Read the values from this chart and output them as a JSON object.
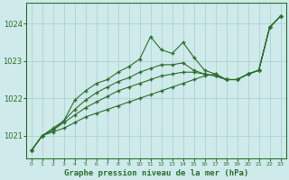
{
  "xlabel": "Graphe pression niveau de la mer (hPa)",
  "x": [
    0,
    1,
    2,
    3,
    4,
    5,
    6,
    7,
    8,
    9,
    10,
    11,
    12,
    13,
    14,
    15,
    16,
    17,
    18,
    19,
    20,
    21,
    22,
    23
  ],
  "series1": [
    1020.6,
    1021.0,
    1021.2,
    1021.4,
    1021.95,
    1022.2,
    1022.4,
    1022.5,
    1022.7,
    1022.85,
    1023.05,
    1023.65,
    1023.3,
    1023.2,
    1023.5,
    1023.1,
    1022.75,
    1022.65,
    1022.5,
    1022.5,
    1022.65,
    1022.75,
    1023.9,
    1024.2
  ],
  "series2": [
    1020.6,
    1021.0,
    1021.15,
    1021.4,
    1021.7,
    1021.95,
    1022.15,
    1022.3,
    1022.45,
    1022.55,
    1022.7,
    1022.8,
    1022.9,
    1022.9,
    1022.95,
    1022.75,
    1022.65,
    1022.6,
    1022.5,
    1022.5,
    1022.65,
    1022.75,
    1023.9,
    1024.2
  ],
  "series3": [
    1020.6,
    1021.0,
    1021.15,
    1021.35,
    1021.55,
    1021.75,
    1021.9,
    1022.05,
    1022.2,
    1022.3,
    1022.4,
    1022.5,
    1022.6,
    1022.65,
    1022.7,
    1022.7,
    1022.65,
    1022.6,
    1022.5,
    1022.5,
    1022.65,
    1022.75,
    1023.9,
    1024.2
  ],
  "series4": [
    1020.6,
    1021.0,
    1021.1,
    1021.2,
    1021.35,
    1021.5,
    1021.6,
    1021.7,
    1021.8,
    1021.9,
    1022.0,
    1022.1,
    1022.2,
    1022.3,
    1022.4,
    1022.5,
    1022.6,
    1022.65,
    1022.5,
    1022.5,
    1022.65,
    1022.75,
    1023.9,
    1024.2
  ],
  "line_color": "#2d6e2d",
  "marker_color": "#2d6e2d",
  "bg_color": "#ceeaea",
  "grid_color": "#a8cece",
  "text_color": "#2d6e2d",
  "ylim_min": 1020.4,
  "ylim_max": 1024.55,
  "yticks": [
    1021,
    1022,
    1023,
    1024
  ]
}
